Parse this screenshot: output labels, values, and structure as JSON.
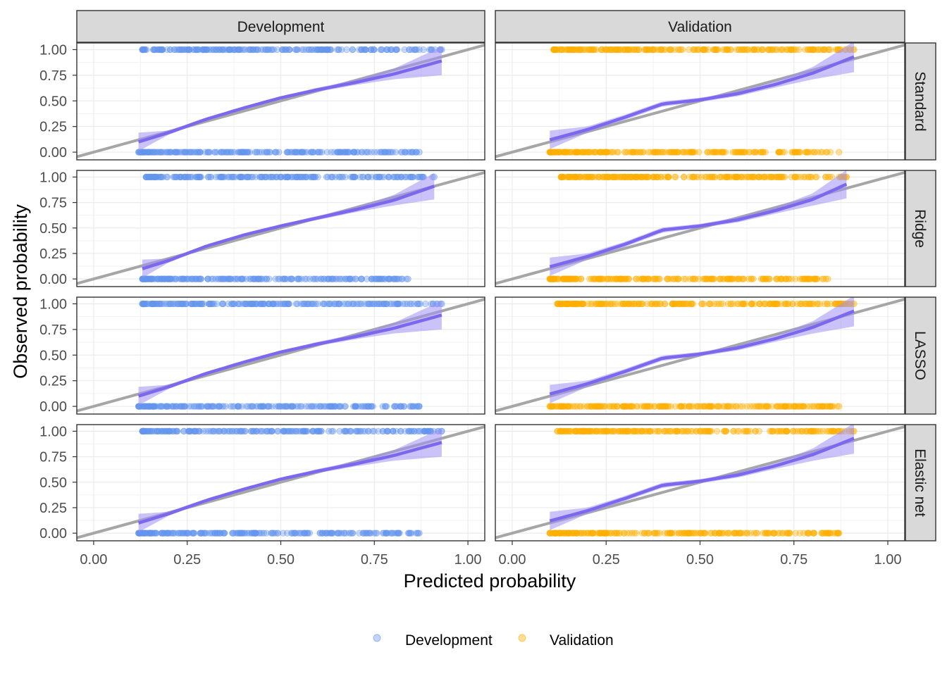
{
  "chart_data": {
    "type": "scatter",
    "title": "",
    "xlabel": "Predicted probability",
    "ylabel": "Observed probability",
    "xlim": [
      0,
      1
    ],
    "ylim": [
      0,
      1
    ],
    "x_ticks": [
      "0.00",
      "0.25",
      "0.50",
      "0.75",
      "1.00"
    ],
    "y_ticks": [
      "0.00",
      "0.25",
      "0.50",
      "0.75",
      "1.00"
    ],
    "grid": true,
    "reference_line": "identity",
    "column_facets": [
      "Development",
      "Validation"
    ],
    "row_facets": [
      "Standard",
      "Ridge",
      "LASSO",
      "Elastic net"
    ],
    "legend": {
      "position": "bottom",
      "entries": [
        {
          "label": "Development",
          "color": "#6495ED"
        },
        {
          "label": "Validation",
          "color": "#FFB000"
        }
      ]
    },
    "colors": {
      "Development": "#6495ED",
      "Validation": "#FFB000",
      "smooth_line": "#7B68EE",
      "smooth_band": "#9F8FF2",
      "reference_line": "#A6A6A6",
      "strip": "#D9D9D9"
    },
    "panels": [
      {
        "col": "Development",
        "row": "Standard",
        "x_range": [
          0.12,
          0.93
        ],
        "top_range": [
          0.13,
          0.93
        ],
        "bottom_range": [
          0.12,
          0.87
        ],
        "curve": [
          [
            0.12,
            0.1
          ],
          [
            0.2,
            0.19
          ],
          [
            0.3,
            0.32
          ],
          [
            0.4,
            0.43
          ],
          [
            0.5,
            0.53
          ],
          [
            0.6,
            0.61
          ],
          [
            0.7,
            0.68
          ],
          [
            0.8,
            0.76
          ],
          [
            0.93,
            0.89
          ]
        ],
        "band_halfwidth": [
          0.09,
          0.02,
          0.015,
          0.015,
          0.015,
          0.02,
          0.025,
          0.05,
          0.14
        ]
      },
      {
        "col": "Validation",
        "row": "Standard",
        "x_range": [
          0.1,
          0.91
        ],
        "top_range": [
          0.11,
          0.91
        ],
        "bottom_range": [
          0.1,
          0.87
        ],
        "curve": [
          [
            0.1,
            0.12
          ],
          [
            0.2,
            0.22
          ],
          [
            0.3,
            0.34
          ],
          [
            0.4,
            0.47
          ],
          [
            0.5,
            0.51
          ],
          [
            0.6,
            0.57
          ],
          [
            0.7,
            0.66
          ],
          [
            0.8,
            0.77
          ],
          [
            0.91,
            0.93
          ]
        ],
        "band_halfwidth": [
          0.09,
          0.03,
          0.025,
          0.025,
          0.02,
          0.025,
          0.03,
          0.06,
          0.15
        ]
      },
      {
        "col": "Development",
        "row": "Ridge",
        "x_range": [
          0.13,
          0.91
        ],
        "top_range": [
          0.14,
          0.91
        ],
        "bottom_range": [
          0.13,
          0.84
        ],
        "curve": [
          [
            0.13,
            0.1
          ],
          [
            0.2,
            0.18
          ],
          [
            0.3,
            0.32
          ],
          [
            0.4,
            0.43
          ],
          [
            0.5,
            0.52
          ],
          [
            0.6,
            0.6
          ],
          [
            0.7,
            0.68
          ],
          [
            0.8,
            0.77
          ],
          [
            0.91,
            0.91
          ]
        ],
        "band_halfwidth": [
          0.09,
          0.02,
          0.015,
          0.015,
          0.015,
          0.02,
          0.025,
          0.05,
          0.13
        ]
      },
      {
        "col": "Validation",
        "row": "Ridge",
        "x_range": [
          0.1,
          0.89
        ],
        "top_range": [
          0.13,
          0.89
        ],
        "bottom_range": [
          0.1,
          0.84
        ],
        "curve": [
          [
            0.1,
            0.12
          ],
          [
            0.2,
            0.22
          ],
          [
            0.3,
            0.34
          ],
          [
            0.4,
            0.48
          ],
          [
            0.5,
            0.52
          ],
          [
            0.6,
            0.58
          ],
          [
            0.7,
            0.67
          ],
          [
            0.8,
            0.78
          ],
          [
            0.89,
            0.93
          ]
        ],
        "band_halfwidth": [
          0.09,
          0.03,
          0.025,
          0.025,
          0.02,
          0.025,
          0.03,
          0.06,
          0.14
        ]
      },
      {
        "col": "Development",
        "row": "LASSO",
        "x_range": [
          0.12,
          0.93
        ],
        "top_range": [
          0.13,
          0.93
        ],
        "bottom_range": [
          0.12,
          0.87
        ],
        "curve": [
          [
            0.12,
            0.1
          ],
          [
            0.2,
            0.19
          ],
          [
            0.3,
            0.32
          ],
          [
            0.4,
            0.43
          ],
          [
            0.5,
            0.53
          ],
          [
            0.6,
            0.61
          ],
          [
            0.7,
            0.68
          ],
          [
            0.8,
            0.76
          ],
          [
            0.93,
            0.89
          ]
        ],
        "band_halfwidth": [
          0.09,
          0.02,
          0.015,
          0.015,
          0.015,
          0.02,
          0.025,
          0.05,
          0.14
        ]
      },
      {
        "col": "Validation",
        "row": "LASSO",
        "x_range": [
          0.1,
          0.91
        ],
        "top_range": [
          0.12,
          0.91
        ],
        "bottom_range": [
          0.1,
          0.87
        ],
        "curve": [
          [
            0.1,
            0.12
          ],
          [
            0.2,
            0.22
          ],
          [
            0.3,
            0.34
          ],
          [
            0.4,
            0.47
          ],
          [
            0.5,
            0.51
          ],
          [
            0.6,
            0.57
          ],
          [
            0.7,
            0.66
          ],
          [
            0.8,
            0.77
          ],
          [
            0.91,
            0.93
          ]
        ],
        "band_halfwidth": [
          0.09,
          0.03,
          0.025,
          0.025,
          0.02,
          0.025,
          0.03,
          0.06,
          0.15
        ]
      },
      {
        "col": "Development",
        "row": "Elastic net",
        "x_range": [
          0.12,
          0.93
        ],
        "top_range": [
          0.13,
          0.93
        ],
        "bottom_range": [
          0.12,
          0.87
        ],
        "curve": [
          [
            0.12,
            0.1
          ],
          [
            0.2,
            0.19
          ],
          [
            0.3,
            0.32
          ],
          [
            0.4,
            0.43
          ],
          [
            0.5,
            0.53
          ],
          [
            0.6,
            0.61
          ],
          [
            0.7,
            0.68
          ],
          [
            0.8,
            0.76
          ],
          [
            0.93,
            0.89
          ]
        ],
        "band_halfwidth": [
          0.09,
          0.02,
          0.015,
          0.015,
          0.015,
          0.02,
          0.025,
          0.05,
          0.14
        ]
      },
      {
        "col": "Validation",
        "row": "Elastic net",
        "x_range": [
          0.1,
          0.91
        ],
        "top_range": [
          0.12,
          0.91
        ],
        "bottom_range": [
          0.1,
          0.87
        ],
        "curve": [
          [
            0.1,
            0.12
          ],
          [
            0.2,
            0.22
          ],
          [
            0.3,
            0.34
          ],
          [
            0.4,
            0.47
          ],
          [
            0.5,
            0.51
          ],
          [
            0.6,
            0.57
          ],
          [
            0.7,
            0.66
          ],
          [
            0.8,
            0.77
          ],
          [
            0.91,
            0.93
          ]
        ],
        "band_halfwidth": [
          0.09,
          0.03,
          0.025,
          0.025,
          0.02,
          0.025,
          0.03,
          0.06,
          0.15
        ]
      }
    ]
  }
}
